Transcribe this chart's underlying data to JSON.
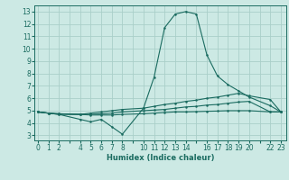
{
  "xlabel": "Humidex (Indice chaleur)",
  "ylabel": "",
  "bg_color": "#cce9e4",
  "grid_color": "#aacfc9",
  "line_color": "#1a6b60",
  "xtick_labels": [
    "0",
    "1",
    "2",
    "",
    "4",
    "5",
    "6",
    "7",
    "8",
    "",
    "10",
    "11",
    "12",
    "13",
    "14",
    "",
    "16",
    "17",
    "18",
    "19",
    "20",
    "",
    "22",
    "23"
  ],
  "xtick_positions": [
    0,
    1,
    2,
    3,
    4,
    5,
    6,
    7,
    8,
    9,
    10,
    11,
    12,
    13,
    14,
    15,
    16,
    17,
    18,
    19,
    20,
    21,
    22,
    23
  ],
  "yticks": [
    3,
    4,
    5,
    6,
    7,
    8,
    9,
    10,
    11,
    12,
    13
  ],
  "xlim": [
    -0.3,
    23.5
  ],
  "ylim": [
    2.6,
    13.5
  ],
  "lines": [
    {
      "x": [
        0,
        1,
        2,
        4,
        5,
        6,
        7,
        8,
        10,
        11,
        12,
        13,
        14,
        15,
        16,
        17,
        18,
        19,
        20,
        22,
        23
      ],
      "y": [
        4.9,
        4.8,
        4.7,
        4.3,
        4.1,
        4.3,
        3.7,
        3.1,
        5.2,
        7.7,
        11.7,
        12.8,
        13.0,
        12.8,
        9.5,
        7.8,
        7.1,
        6.6,
        6.1,
        5.4,
        4.9
      ]
    },
    {
      "x": [
        0,
        1,
        2,
        4,
        5,
        6,
        7,
        8,
        10,
        11,
        12,
        13,
        14,
        15,
        16,
        17,
        18,
        19,
        20,
        22,
        23
      ],
      "y": [
        4.9,
        4.8,
        4.7,
        4.7,
        4.8,
        4.9,
        5.0,
        5.1,
        5.2,
        5.35,
        5.5,
        5.6,
        5.75,
        5.85,
        6.0,
        6.1,
        6.25,
        6.4,
        6.2,
        5.9,
        4.9
      ]
    },
    {
      "x": [
        0,
        1,
        2,
        4,
        5,
        6,
        7,
        8,
        10,
        11,
        12,
        13,
        14,
        15,
        16,
        17,
        18,
        19,
        20,
        22,
        23
      ],
      "y": [
        4.9,
        4.8,
        4.75,
        4.7,
        4.7,
        4.75,
        4.8,
        4.9,
        5.0,
        5.05,
        5.1,
        5.2,
        5.3,
        5.35,
        5.45,
        5.5,
        5.6,
        5.7,
        5.75,
        4.9,
        4.9
      ]
    },
    {
      "x": [
        0,
        1,
        2,
        4,
        5,
        6,
        7,
        8,
        10,
        11,
        12,
        13,
        14,
        15,
        16,
        17,
        18,
        19,
        20,
        22,
        23
      ],
      "y": [
        4.9,
        4.8,
        4.75,
        4.7,
        4.65,
        4.65,
        4.65,
        4.7,
        4.75,
        4.8,
        4.85,
        4.9,
        4.9,
        4.92,
        4.95,
        4.97,
        5.0,
        5.0,
        5.0,
        4.9,
        4.9
      ]
    }
  ]
}
